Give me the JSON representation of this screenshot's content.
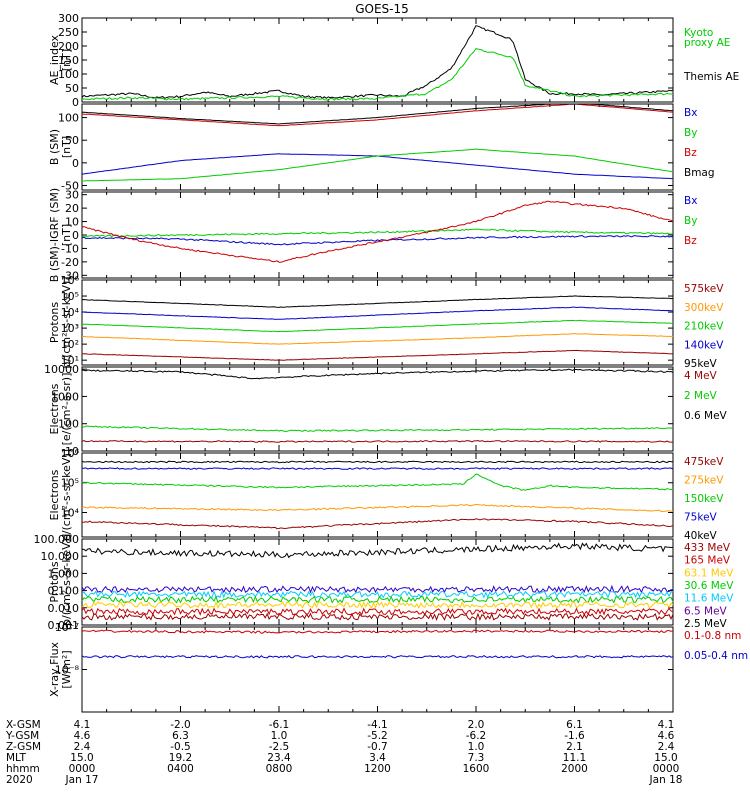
{
  "title": "GOES-15",
  "time_axis": {
    "rows": [
      {
        "label": "X-GSM",
        "values": [
          "4.1",
          "-2.0",
          "-6.1",
          "-4.1",
          "2.0",
          "6.1",
          "4.1"
        ]
      },
      {
        "label": "Y-GSM",
        "values": [
          "4.6",
          "6.3",
          "1.0",
          "-5.2",
          "-6.2",
          "-1.6",
          "4.6"
        ]
      },
      {
        "label": "Z-GSM",
        "values": [
          "2.4",
          "-0.5",
          "-2.5",
          "-0.7",
          "1.0",
          "2.1",
          "2.4"
        ]
      },
      {
        "label": "MLT",
        "values": [
          "15.0",
          "19.2",
          "23.4",
          "3.4",
          "7.3",
          "11.1",
          "15.0"
        ]
      },
      {
        "label": "hhmm",
        "values": [
          "0000",
          "0400",
          "0800",
          "1200",
          "1600",
          "2000",
          "0000"
        ]
      },
      {
        "label": "2020",
        "values": [
          "Jan 17",
          "",
          "",
          "",
          "",
          "",
          "Jan 18"
        ]
      }
    ]
  },
  "chart_data": [
    {
      "type": "line",
      "id": "ae",
      "ylabel": [
        "AE_index",
        "[nT]"
      ],
      "ylim": [
        0,
        300
      ],
      "scale": "linear",
      "ticks": [
        "0",
        "50",
        "100",
        "150",
        "200",
        "250",
        "300"
      ],
      "legend": [
        {
          "label": "Kyoto",
          "color": "#00cc00"
        },
        {
          "label": "proxy AE",
          "color": "#00cc00"
        },
        {
          "label": "Themis AE",
          "color": "#000000"
        }
      ],
      "series": [
        {
          "name": "Themis AE",
          "color": "#000000",
          "x": [
            0,
            1,
            2,
            3,
            4,
            5,
            6,
            7,
            8,
            9,
            10,
            11,
            12,
            13,
            14,
            15,
            16,
            17,
            17.5,
            18,
            19,
            20,
            21,
            22,
            23,
            24
          ],
          "y": [
            20,
            25,
            30,
            15,
            20,
            35,
            20,
            30,
            40,
            20,
            15,
            20,
            25,
            20,
            60,
            120,
            270,
            240,
            220,
            80,
            30,
            30,
            25,
            30,
            35,
            40
          ]
        },
        {
          "name": "Kyoto proxy AE",
          "color": "#00cc00",
          "x": [
            0,
            2,
            4,
            6,
            8,
            10,
            12,
            14,
            15,
            16,
            17,
            17.5,
            18,
            20,
            22,
            24
          ],
          "y": [
            10,
            15,
            10,
            15,
            20,
            10,
            12,
            30,
            80,
            190,
            170,
            160,
            60,
            20,
            25,
            30
          ]
        }
      ]
    },
    {
      "type": "line",
      "id": "bsm",
      "ylabel": [
        "B (SM)",
        "[nT]"
      ],
      "ylim": [
        -60,
        130
      ],
      "scale": "linear",
      "ticks": [
        "-50",
        "0",
        "50",
        "100"
      ],
      "legend": [
        {
          "label": "Bx",
          "color": "#0000cc"
        },
        {
          "label": "By",
          "color": "#00cc00"
        },
        {
          "label": "Bz",
          "color": "#cc0000"
        },
        {
          "label": "Bmag",
          "color": "#000000"
        }
      ],
      "series": [
        {
          "name": "Bx",
          "color": "#0000cc",
          "x": [
            0,
            4,
            8,
            12,
            16,
            20,
            24
          ],
          "y": [
            -25,
            5,
            20,
            15,
            -5,
            -25,
            -35
          ]
        },
        {
          "name": "By",
          "color": "#00cc00",
          "x": [
            0,
            4,
            8,
            12,
            16,
            20,
            24
          ],
          "y": [
            -40,
            -35,
            -15,
            15,
            30,
            15,
            -20
          ]
        },
        {
          "name": "Bz",
          "color": "#cc0000",
          "x": [
            0,
            4,
            8,
            12,
            16,
            20,
            24
          ],
          "y": [
            108,
            95,
            82,
            95,
            115,
            130,
            112
          ]
        },
        {
          "name": "Bmag",
          "color": "#000000",
          "x": [
            0,
            4,
            8,
            12,
            16,
            20,
            24
          ],
          "y": [
            112,
            98,
            86,
            100,
            120,
            133,
            115
          ]
        }
      ]
    },
    {
      "type": "line",
      "id": "bigrf",
      "ylabel": [
        "B (SM)-IGRF (SM)",
        "[nT]"
      ],
      "ylim": [
        -32,
        32
      ],
      "scale": "linear",
      "ticks": [
        "-30",
        "-20",
        "-10",
        "0",
        "10",
        "20",
        "30"
      ],
      "legend": [
        {
          "label": "Bx",
          "color": "#0000cc"
        },
        {
          "label": "By",
          "color": "#00cc00"
        },
        {
          "label": "Bz",
          "color": "#cc0000"
        }
      ],
      "series": [
        {
          "name": "Bx",
          "color": "#0000cc",
          "x": [
            0,
            4,
            8,
            12,
            16,
            20,
            24
          ],
          "y": [
            -2,
            -3,
            -7,
            -4,
            -2,
            -1,
            -1
          ]
        },
        {
          "name": "By",
          "color": "#00cc00",
          "x": [
            0,
            4,
            8,
            12,
            16,
            20,
            24
          ],
          "y": [
            -1,
            0,
            1,
            2,
            4,
            2,
            1
          ]
        },
        {
          "name": "Bz",
          "color": "#cc0000",
          "x": [
            0,
            2,
            4,
            6,
            8,
            10,
            12,
            14,
            16,
            18,
            19,
            20,
            22,
            24
          ],
          "y": [
            6,
            -3,
            -10,
            -15,
            -20,
            -12,
            -5,
            2,
            10,
            22,
            25,
            23,
            20,
            10
          ]
        }
      ]
    },
    {
      "type": "line",
      "id": "protons1",
      "ylabel": [
        "Protons",
        "p/(cm²-s-sr-keV)]"
      ],
      "ylim": [
        5,
        1000000
      ],
      "scale": "log",
      "ticks": [
        "10¹",
        "10²",
        "10³",
        "10⁴",
        "10⁵",
        "10⁶"
      ],
      "legend": [
        {
          "label": "575keV",
          "color": "#990000"
        },
        {
          "label": "300keV",
          "color": "#ff9900"
        },
        {
          "label": "210keV",
          "color": "#00cc00"
        },
        {
          "label": "140keV",
          "color": "#0000cc"
        },
        {
          "label": "95keV",
          "color": "#000000"
        }
      ],
      "series": [
        {
          "name": "95keV",
          "color": "#000000",
          "x": [
            0,
            8,
            16,
            20,
            24
          ],
          "y": [
            60000,
            20000,
            60000,
            100000,
            70000
          ]
        },
        {
          "name": "140keV",
          "color": "#0000cc",
          "x": [
            0,
            8,
            16,
            20,
            24
          ],
          "y": [
            10000,
            3500,
            12000,
            20000,
            12000
          ]
        },
        {
          "name": "210keV",
          "color": "#00cc00",
          "x": [
            0,
            8,
            16,
            20,
            24
          ],
          "y": [
            1800,
            600,
            1800,
            3000,
            2000
          ]
        },
        {
          "name": "300keV",
          "color": "#ff9900",
          "x": [
            0,
            8,
            16,
            20,
            24
          ],
          "y": [
            300,
            100,
            250,
            450,
            300
          ]
        },
        {
          "name": "575keV",
          "color": "#990000",
          "x": [
            0,
            8,
            16,
            20,
            24
          ],
          "y": [
            25,
            10,
            25,
            40,
            25
          ]
        }
      ]
    },
    {
      "type": "line",
      "id": "electrons1",
      "ylabel": [
        "Electrons",
        "[e/(cm²-s-sr)]"
      ],
      "ylim": [
        10,
        12000
      ],
      "scale": "log",
      "ticks": [
        "10",
        "100",
        "1000",
        "10000"
      ],
      "legend": [
        {
          "label": "4 MeV",
          "color": "#990000"
        },
        {
          "label": "2 MeV",
          "color": "#00cc00"
        },
        {
          "label": "0.6 MeV",
          "color": "#000000"
        }
      ],
      "series": [
        {
          "name": "0.6 MeV",
          "color": "#000000",
          "x": [
            0,
            4,
            7,
            8,
            12,
            16,
            20,
            24
          ],
          "y": [
            9000,
            8000,
            4500,
            5000,
            7000,
            8500,
            9500,
            8000
          ]
        },
        {
          "name": "2 MeV",
          "color": "#00cc00",
          "x": [
            0,
            8,
            16,
            24
          ],
          "y": [
            80,
            55,
            60,
            70
          ]
        },
        {
          "name": "4 MeV",
          "color": "#990000",
          "x": [
            0,
            8,
            16,
            24
          ],
          "y": [
            23,
            22,
            23,
            22
          ]
        }
      ]
    },
    {
      "type": "line",
      "id": "electrons2",
      "ylabel": [
        "Electrons",
        "e/(cm²-s-sr-keV)]"
      ],
      "ylim": [
        1500,
        1000000
      ],
      "scale": "log",
      "ticks": [
        "10⁴",
        "10⁵",
        "10⁶"
      ],
      "legend": [
        {
          "label": "475keV",
          "color": "#990000"
        },
        {
          "label": "275keV",
          "color": "#ff9900"
        },
        {
          "label": "150keV",
          "color": "#00cc00"
        },
        {
          "label": "75keV",
          "color": "#0000cc"
        },
        {
          "label": "40keV",
          "color": "#000000"
        }
      ],
      "series": [
        {
          "name": "40keV",
          "color": "#000000",
          "x": [
            0,
            24
          ],
          "y": [
            500000,
            500000
          ]
        },
        {
          "name": "75keV",
          "color": "#0000cc",
          "x": [
            0,
            24
          ],
          "y": [
            300000,
            300000
          ]
        },
        {
          "name": "150keV",
          "color": "#00cc00",
          "x": [
            0,
            8,
            15.5,
            16,
            17,
            18,
            19,
            20,
            24
          ],
          "y": [
            100000,
            70000,
            90000,
            200000,
            80000,
            55000,
            80000,
            70000,
            60000
          ]
        },
        {
          "name": "275keV",
          "color": "#ff9900",
          "x": [
            0,
            8,
            16,
            20,
            24
          ],
          "y": [
            15000,
            12000,
            18000,
            14000,
            11000
          ]
        },
        {
          "name": "475keV",
          "color": "#990000",
          "x": [
            0,
            8,
            16,
            20,
            24
          ],
          "y": [
            5000,
            3000,
            6000,
            5000,
            3500
          ]
        }
      ]
    },
    {
      "type": "line",
      "id": "protons2",
      "ylabel": [
        "Protons",
        "[p/(cm²-s-sr-keV)]"
      ],
      "ylim": [
        0.001,
        100
      ],
      "scale": "log",
      "ticks": [
        "0.001",
        "0.010",
        "0.100",
        "1.000",
        "10.000",
        "100.000"
      ],
      "legend": [
        {
          "label": "433 MeV",
          "color": "#990000"
        },
        {
          "label": "165 MeV",
          "color": "#cc0000"
        },
        {
          "label": "63.1 MeV",
          "color": "#ffcc00"
        },
        {
          "label": "30.6 MeV",
          "color": "#00cc00"
        },
        {
          "label": "11.6 MeV",
          "color": "#00ccff"
        },
        {
          "label": "6.5 MeV",
          "color": "#660099"
        },
        {
          "label": "2.5 MeV",
          "color": "#000000"
        }
      ],
      "series": [
        {
          "name": "2.5 MeV",
          "color": "#000000",
          "x": [
            0,
            8,
            16,
            20,
            24
          ],
          "y": [
            20,
            12,
            25,
            40,
            25
          ]
        },
        {
          "name": "6.5 MeV",
          "color": "#3300cc",
          "x": [
            0,
            24
          ],
          "y": [
            0.12,
            0.12
          ]
        },
        {
          "name": "11.6 MeV",
          "color": "#00ccff",
          "x": [
            0,
            24
          ],
          "y": [
            0.06,
            0.06
          ]
        },
        {
          "name": "30.6 MeV",
          "color": "#00cc00",
          "x": [
            0,
            24
          ],
          "y": [
            0.03,
            0.03
          ]
        },
        {
          "name": "63.1 MeV",
          "color": "#ffcc00",
          "x": [
            0,
            24
          ],
          "y": [
            0.015,
            0.015
          ]
        },
        {
          "name": "165 MeV",
          "color": "#cc0000",
          "x": [
            0,
            24
          ],
          "y": [
            0.006,
            0.006
          ]
        },
        {
          "name": "433 MeV",
          "color": "#990000",
          "x": [
            0,
            24
          ],
          "y": [
            0.003,
            0.003
          ]
        }
      ]
    },
    {
      "type": "line",
      "id": "xray",
      "ylabel": [
        "X-ray Flux",
        "[W/m²]"
      ],
      "ylim": [
        1e-09,
        1e-07
      ],
      "scale": "log",
      "ticks": [
        "10⁻⁸",
        "10⁻⁷"
      ],
      "legend": [
        {
          "label": "0.1-0.8 nm",
          "color": "#cc0000"
        },
        {
          "label": "0.05-0.4 nm",
          "color": "#0000cc"
        }
      ],
      "series": [
        {
          "name": "0.1-0.8 nm",
          "color": "#cc0000",
          "x": [
            0,
            8,
            16,
            24
          ],
          "y": [
            8e-08,
            7.5e-08,
            8e-08,
            7.8e-08
          ]
        },
        {
          "name": "0.05-0.4 nm",
          "color": "#0000cc",
          "x": [
            0,
            8,
            16,
            24
          ],
          "y": [
            2e-08,
            2e-08,
            2e-08,
            2e-08
          ]
        }
      ]
    }
  ]
}
